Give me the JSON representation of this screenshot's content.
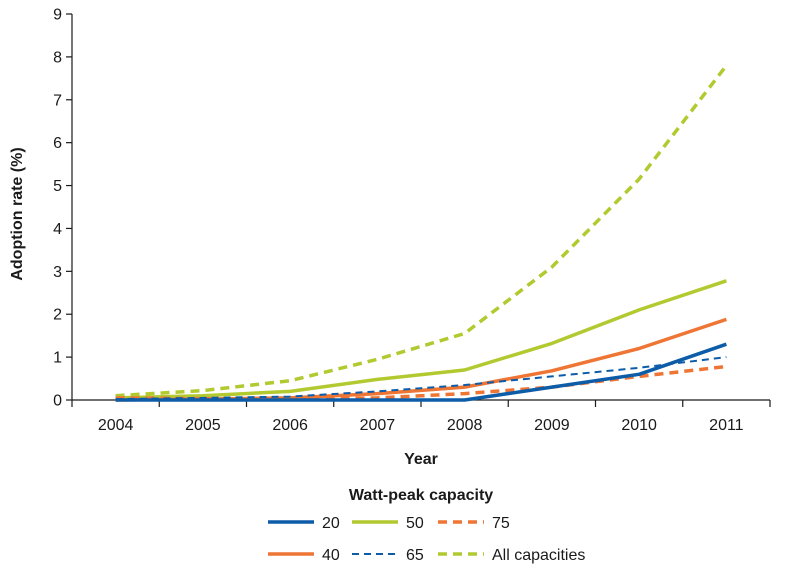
{
  "chart_data": {
    "type": "line",
    "title": "",
    "xlabel": "Year",
    "ylabel": "Adoption rate (%)",
    "categories": [
      "2004",
      "2005",
      "2006",
      "2007",
      "2008",
      "2009",
      "2010",
      "2011"
    ],
    "ylim": [
      0,
      9
    ],
    "yticks": [
      "0",
      "1",
      "2",
      "3",
      "4",
      "5",
      "6",
      "7",
      "8",
      "9"
    ],
    "grid": false,
    "legend_title": "Watt-peak capacity",
    "legend_position": "bottom",
    "series": [
      {
        "name": "20",
        "color": "#0d5ca8",
        "style": "solid",
        "values": [
          0.0,
          0.0,
          0.0,
          0.0,
          0.0,
          0.3,
          0.6,
          1.3
        ]
      },
      {
        "name": "50",
        "color": "#b3c930",
        "style": "solid",
        "values": [
          0.05,
          0.1,
          0.2,
          0.48,
          0.7,
          1.32,
          2.1,
          2.78
        ]
      },
      {
        "name": "75",
        "color": "#ee7534",
        "style": "dash",
        "values": [
          0.05,
          0.03,
          0.02,
          0.05,
          0.15,
          0.3,
          0.55,
          0.78
        ]
      },
      {
        "name": "40",
        "color": "#ee7534",
        "style": "solid",
        "values": [
          0.0,
          0.02,
          0.05,
          0.15,
          0.3,
          0.68,
          1.2,
          1.88
        ]
      },
      {
        "name": "65",
        "color": "#0d5ca8",
        "style": "thin-dash",
        "values": [
          0.02,
          0.05,
          0.08,
          0.2,
          0.35,
          0.55,
          0.75,
          1.0
        ]
      },
      {
        "name": "All capacities",
        "color": "#b3c930",
        "style": "dash",
        "values": [
          0.1,
          0.22,
          0.45,
          0.95,
          1.55,
          3.1,
          5.15,
          7.8
        ]
      }
    ]
  }
}
